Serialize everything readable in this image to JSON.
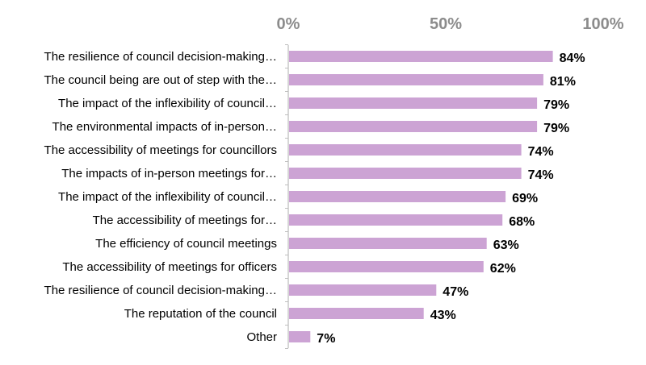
{
  "chart_data": {
    "type": "bar",
    "orientation": "horizontal",
    "categories": [
      "The resilience of council decision-making…",
      "The council being are out of step with the…",
      "The impact of the inflexibility of council…",
      "The environmental impacts of in-person…",
      "The accessibility of meetings for councillors",
      "The impacts of in-person meetings for…",
      "The impact of the inflexibility of council…",
      "The accessibility of meetings for…",
      "The efficiency of council meetings",
      "The accessibility of meetings for officers",
      "The resilience of council decision-making…",
      "The reputation of the council",
      "Other"
    ],
    "values": [
      84,
      81,
      79,
      79,
      74,
      74,
      69,
      68,
      63,
      62,
      47,
      43,
      7
    ],
    "value_labels": [
      "84%",
      "81%",
      "79%",
      "79%",
      "74%",
      "74%",
      "69%",
      "68%",
      "63%",
      "62%",
      "47%",
      "43%",
      "7%"
    ],
    "xlim": [
      0,
      100
    ],
    "ticks": [
      0,
      50,
      100
    ],
    "tick_labels": [
      "0%",
      "50%",
      "100%"
    ],
    "axis_position": "top",
    "grid": false,
    "legend": "none",
    "bar_color": "#cca3d4",
    "axis_color": "#bfbfbf"
  }
}
